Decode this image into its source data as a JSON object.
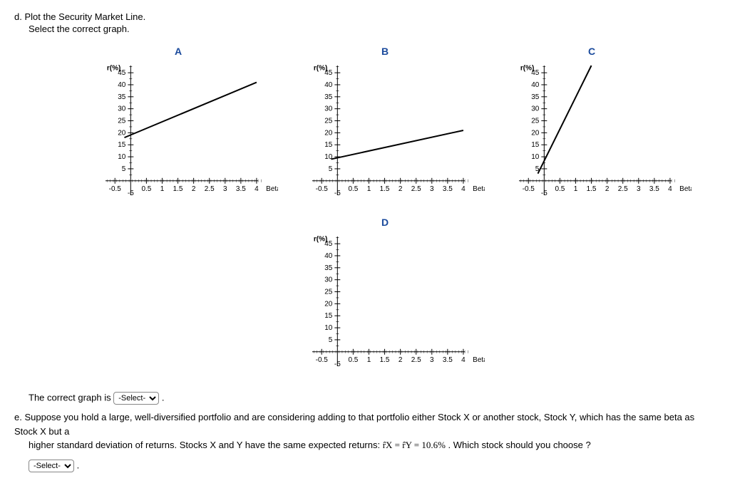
{
  "question_d": {
    "label": "d. Plot the Security Market Line.",
    "sub": "Select the correct graph."
  },
  "chart": {
    "y_label": "r(%)",
    "x_label": "Beta",
    "y_ticks": [
      5,
      10,
      15,
      20,
      25,
      30,
      35,
      40,
      45
    ],
    "x_ticks_left": "-0.5",
    "x_ticks_leftsub": "-5",
    "x_ticks": [
      "0.5",
      "1",
      "1.5",
      "2",
      "2.5",
      "3",
      "3.5",
      "4"
    ],
    "xlim": [
      -0.8,
      4.5
    ],
    "ylim": [
      -6,
      48
    ],
    "axis_color": "#000000",
    "tick_color": "#000000",
    "line_color": "#000000",
    "line_width": 2,
    "tick_font_size": 10
  },
  "panels": {
    "A": {
      "title": "A",
      "line": {
        "x1": -0.2,
        "y1": 18,
        "x2": 4,
        "y2": 41
      }
    },
    "B": {
      "title": "B",
      "line": {
        "x1": -0.2,
        "y1": 9,
        "x2": 4,
        "y2": 21
      }
    },
    "C": {
      "title": "C",
      "line": {
        "x1": -0.2,
        "y1": 3,
        "x2": 1.5,
        "y2": 48
      }
    },
    "D": {
      "title": "D",
      "line": null
    }
  },
  "answer_text": {
    "prefix": "The correct graph is ",
    "suffix": "."
  },
  "select_placeholder": "-Select-",
  "question_e": {
    "label_prefix": "e. ",
    "text1": "Suppose you hold a large, well-diversified portfolio and are considering adding to that portfolio either Stock X or another stock, Stock Y, which has the same beta as Stock X but a",
    "text2": "higher standard deviation of returns. Stocks X and Y have the same expected returns: ",
    "formula": "r̂X = r̂Y = 10.6%",
    "text3": " . Which stock should you choose ?"
  }
}
